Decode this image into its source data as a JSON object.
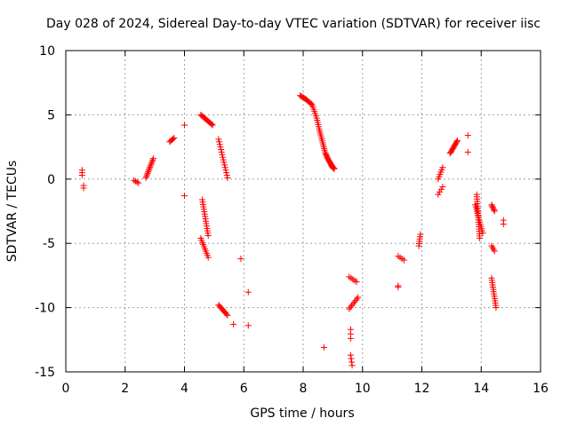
{
  "chart_data": {
    "type": "scatter",
    "title": "Day 028 of 2024, Sidereal Day-to-day VTEC variation (SDTVAR) for receiver iisc",
    "xlabel": "GPS time / hours",
    "ylabel": "SDTVAR / TECUs",
    "xlim": [
      0,
      16
    ],
    "ylim": [
      -15,
      10
    ],
    "x_ticks": [
      "0",
      "2",
      "4",
      "6",
      "8",
      "10",
      "12",
      "14",
      "16"
    ],
    "y_ticks": [
      "-15",
      "-10",
      "-5",
      "0",
      "5",
      "10"
    ],
    "grid": true,
    "marker": "+",
    "color": "#ff0000",
    "segments": [
      {
        "x0": 0.55,
        "y0": 0.7,
        "x1": 0.55,
        "y1": 0.3,
        "n": 3
      },
      {
        "x0": 0.6,
        "y0": -0.5,
        "x1": 0.6,
        "y1": -0.7,
        "n": 2
      },
      {
        "x0": 2.3,
        "y0": -0.1,
        "x1": 2.45,
        "y1": -0.3,
        "n": 4
      },
      {
        "x0": 2.7,
        "y0": 0.1,
        "x1": 2.95,
        "y1": 1.6,
        "n": 14
      },
      {
        "x0": 3.5,
        "y0": 2.9,
        "x1": 3.65,
        "y1": 3.2,
        "n": 5
      },
      {
        "x0": 4.0,
        "y0": 4.2,
        "x1": 4.0,
        "y1": 4.2,
        "n": 1
      },
      {
        "x0": 4.0,
        "y0": -1.3,
        "x1": 4.0,
        "y1": -1.3,
        "n": 1
      },
      {
        "x0": 4.55,
        "y0": 5.0,
        "x1": 4.95,
        "y1": 4.2,
        "n": 14
      },
      {
        "x0": 4.6,
        "y0": -1.6,
        "x1": 4.8,
        "y1": -4.4,
        "n": 16
      },
      {
        "x0": 4.55,
        "y0": -4.6,
        "x1": 4.8,
        "y1": -6.1,
        "n": 10
      },
      {
        "x0": 5.15,
        "y0": 3.1,
        "x1": 5.45,
        "y1": 0.1,
        "n": 16
      },
      {
        "x0": 5.15,
        "y0": -9.8,
        "x1": 5.45,
        "y1": -10.6,
        "n": 10
      },
      {
        "x0": 5.65,
        "y0": -11.3,
        "x1": 5.65,
        "y1": -11.3,
        "n": 1
      },
      {
        "x0": 5.9,
        "y0": -6.2,
        "x1": 5.9,
        "y1": -6.2,
        "n": 1
      },
      {
        "x0": 6.15,
        "y0": -8.8,
        "x1": 6.15,
        "y1": -8.8,
        "n": 1
      },
      {
        "x0": 6.15,
        "y0": -11.4,
        "x1": 6.15,
        "y1": -11.4,
        "n": 1
      },
      {
        "x0": 8.7,
        "y0": -13.1,
        "x1": 8.7,
        "y1": -13.1,
        "n": 1
      },
      {
        "x0": 9.55,
        "y0": -7.6,
        "x1": 9.8,
        "y1": -8.0,
        "n": 5
      },
      {
        "x0": 9.55,
        "y0": -10.1,
        "x1": 9.85,
        "y1": -9.2,
        "n": 8
      },
      {
        "x0": 9.6,
        "y0": -11.7,
        "x1": 9.6,
        "y1": -12.4,
        "n": 3
      },
      {
        "x0": 9.6,
        "y0": -13.7,
        "x1": 9.65,
        "y1": -14.5,
        "n": 4
      },
      {
        "x0": 11.2,
        "y0": -6.0,
        "x1": 11.4,
        "y1": -6.3,
        "n": 4
      },
      {
        "x0": 11.2,
        "y0": -8.3,
        "x1": 11.2,
        "y1": -8.4,
        "n": 2
      },
      {
        "x0": 11.9,
        "y0": -5.2,
        "x1": 11.95,
        "y1": -4.3,
        "n": 6
      },
      {
        "x0": 12.55,
        "y0": 0.0,
        "x1": 12.7,
        "y1": 0.9,
        "n": 6
      },
      {
        "x0": 12.55,
        "y0": -1.2,
        "x1": 12.7,
        "y1": -0.6,
        "n": 4
      },
      {
        "x0": 12.95,
        "y0": 2.0,
        "x1": 13.2,
        "y1": 3.0,
        "n": 12
      },
      {
        "x0": 13.55,
        "y0": 3.4,
        "x1": 13.55,
        "y1": 3.4,
        "n": 1
      },
      {
        "x0": 13.55,
        "y0": 2.1,
        "x1": 13.55,
        "y1": 2.1,
        "n": 1
      },
      {
        "x0": 13.85,
        "y0": -1.2,
        "x1": 13.95,
        "y1": -4.6,
        "n": 20
      },
      {
        "x0": 13.8,
        "y0": -2.0,
        "x1": 14.05,
        "y1": -4.2,
        "n": 14
      },
      {
        "x0": 14.35,
        "y0": -2.0,
        "x1": 14.45,
        "y1": -2.5,
        "n": 6
      },
      {
        "x0": 14.35,
        "y0": -5.2,
        "x1": 14.45,
        "y1": -5.6,
        "n": 4
      },
      {
        "x0": 14.35,
        "y0": -7.7,
        "x1": 14.5,
        "y1": -10.0,
        "n": 14
      },
      {
        "x0": 14.75,
        "y0": -3.2,
        "x1": 14.75,
        "y1": -3.5,
        "n": 2
      }
    ],
    "curve": {
      "x": [
        7.9,
        8.1,
        8.3,
        8.45,
        8.55,
        8.65,
        8.75,
        8.85,
        8.95,
        9.0,
        9.05
      ],
      "y": [
        6.5,
        6.2,
        5.8,
        4.8,
        3.8,
        2.9,
        2.0,
        1.5,
        1.1,
        0.9,
        0.8
      ],
      "n": 60
    }
  }
}
